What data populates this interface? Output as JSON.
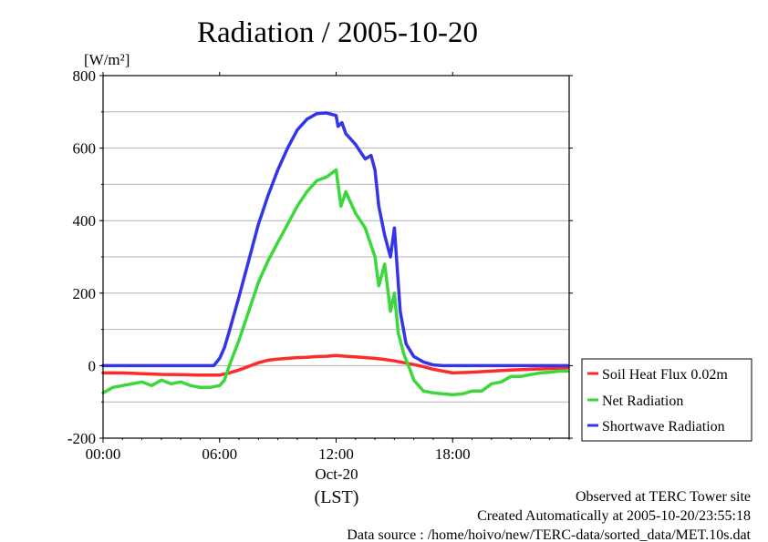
{
  "chart_data": {
    "type": "line",
    "title": "Radiation / 2005-10-20",
    "ylabel": "[W/m²]",
    "xlabel": "(LST)",
    "x_unit": "hour",
    "xlim": [
      0,
      24
    ],
    "ylim": [
      -200,
      800
    ],
    "yticks": [
      -200,
      0,
      200,
      400,
      600,
      800
    ],
    "ytick_labels": [
      "-200",
      "0",
      "200",
      "400",
      "600",
      "800"
    ],
    "xticks": [
      0,
      6,
      12,
      18
    ],
    "xtick_labels": [
      "00:00",
      "06:00",
      "12:00",
      "18:00"
    ],
    "date_label": "Oct-20",
    "grid": true,
    "legend_position": "right",
    "series": [
      {
        "name": "Soil Heat Flux 0.02m",
        "color": "#ff2a2a",
        "x": [
          0,
          1,
          2,
          3,
          4,
          5,
          6,
          6.5,
          7,
          7.5,
          8,
          8.5,
          9,
          9.5,
          10,
          10.5,
          11,
          11.5,
          12,
          12.5,
          13,
          13.5,
          14,
          14.5,
          15,
          15.5,
          16,
          16.5,
          17,
          17.5,
          18,
          19,
          20,
          21,
          22,
          23,
          23.9
        ],
        "values": [
          -20,
          -20,
          -22,
          -24,
          -25,
          -26,
          -26,
          -20,
          -12,
          -2,
          8,
          15,
          18,
          20,
          22,
          23,
          25,
          26,
          28,
          26,
          24,
          22,
          20,
          17,
          13,
          8,
          3,
          -3,
          -10,
          -15,
          -20,
          -18,
          -15,
          -12,
          -10,
          -8,
          -6
        ]
      },
      {
        "name": "Net Radiation",
        "color": "#3ad83a",
        "x": [
          0,
          0.5,
          1,
          1.5,
          2,
          2.5,
          3,
          3.5,
          4,
          4.5,
          5,
          5.5,
          6,
          6.25,
          6.5,
          7,
          7.5,
          8,
          8.5,
          9,
          9.5,
          10,
          10.5,
          11,
          11.5,
          12,
          12.25,
          12.5,
          13,
          13.5,
          14,
          14.2,
          14.5,
          14.8,
          15,
          15.2,
          15.5,
          15.8,
          16,
          16.5,
          17,
          17.5,
          18,
          18.5,
          19,
          19.5,
          20,
          20.5,
          21,
          21.5,
          22,
          22.5,
          23,
          23.5,
          23.9
        ],
        "values": [
          -75,
          -60,
          -55,
          -50,
          -45,
          -55,
          -40,
          -50,
          -45,
          -55,
          -60,
          -60,
          -55,
          -40,
          0,
          70,
          150,
          230,
          290,
          340,
          390,
          440,
          480,
          510,
          520,
          540,
          440,
          480,
          420,
          380,
          300,
          220,
          280,
          150,
          200,
          90,
          30,
          -10,
          -40,
          -70,
          -75,
          -78,
          -80,
          -78,
          -70,
          -70,
          -50,
          -45,
          -30,
          -30,
          -25,
          -20,
          -18,
          -15,
          -15
        ]
      },
      {
        "name": "Shortwave Radiation",
        "color": "#3535e8",
        "x": [
          0,
          1,
          2,
          3,
          4,
          5,
          5.7,
          6,
          6.25,
          6.5,
          7,
          7.5,
          8,
          8.5,
          9,
          9.5,
          10,
          10.5,
          11,
          11.5,
          12,
          12.1,
          12.3,
          12.5,
          13,
          13.5,
          13.8,
          14,
          14.2,
          14.5,
          14.8,
          15,
          15.3,
          15.6,
          16,
          16.5,
          17,
          17.5,
          18,
          20,
          22,
          23.9
        ],
        "values": [
          0,
          0,
          0,
          0,
          0,
          0,
          0,
          20,
          50,
          95,
          190,
          290,
          390,
          470,
          540,
          600,
          650,
          680,
          695,
          697,
          690,
          660,
          670,
          640,
          610,
          570,
          580,
          540,
          440,
          360,
          300,
          380,
          150,
          60,
          25,
          10,
          2,
          0,
          0,
          0,
          0,
          0
        ]
      }
    ]
  },
  "footer": {
    "line1": "Observed at TERC Tower site",
    "line2": "Created Automatically at 2005-10-20/23:55:18",
    "line3": "Data source : /home/hoivo/new/TERC-data/sorted_data/MET.10s.dat"
  }
}
